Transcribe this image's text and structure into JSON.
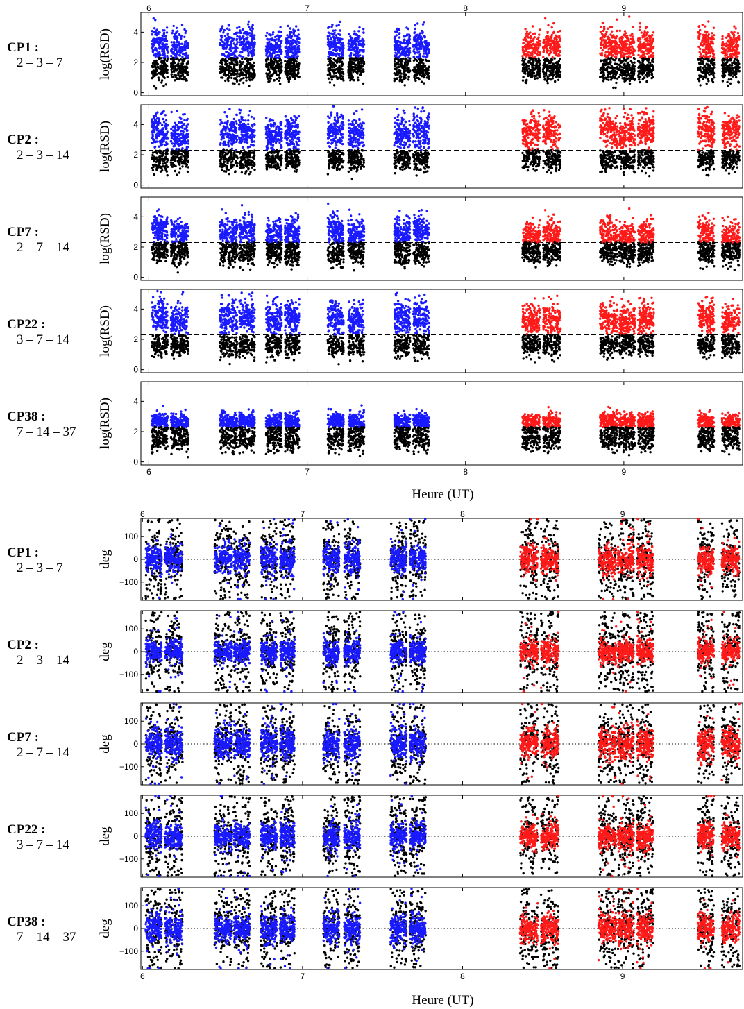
{
  "colors": {
    "black": "#000000",
    "blue": "#1a1aff",
    "red": "#ff1a1a"
  },
  "figure": {
    "xlabel_top": "Heure (UT)",
    "xlabel_bottom": "Heure (UT)"
  },
  "chart_data": [
    {
      "type": "scatter",
      "title": "",
      "xlabel": "Heure (UT)",
      "ylabel": "log(RSD)",
      "xlim": [
        5.95,
        9.75
      ],
      "ylim": [
        -0.2,
        5.3
      ],
      "xticks": [
        6,
        7,
        8,
        9
      ],
      "yticks": [
        0,
        2,
        4
      ],
      "threshold": 2.3,
      "threshold_style": "dashed",
      "panels": [
        {
          "name": "CP1 :",
          "label": "2 – 3 – 7",
          "blue_level": 3.0,
          "red_level": 3.0,
          "spread": 0.55,
          "low_level": 1.5
        },
        {
          "name": "CP2 :",
          "label": "2 – 3 – 14",
          "blue_level": 3.3,
          "red_level": 3.5,
          "spread": 0.6,
          "low_level": 1.7
        },
        {
          "name": "CP7 :",
          "label": "2 – 7 – 14",
          "blue_level": 2.9,
          "red_level": 2.7,
          "spread": 0.5,
          "low_level": 1.6
        },
        {
          "name": "CP22 :",
          "label": "3 – 7 – 14",
          "blue_level": 3.3,
          "red_level": 3.2,
          "spread": 0.6,
          "low_level": 1.6
        },
        {
          "name": "CP38 :",
          "label": "7 – 14 – 37",
          "blue_level": 2.6,
          "red_level": 2.6,
          "spread": 0.3,
          "low_level": 1.5
        }
      ]
    },
    {
      "type": "scatter",
      "title": "",
      "xlabel": "Heure (UT)",
      "ylabel": "deg",
      "xlim": [
        5.99,
        9.75
      ],
      "ylim": [
        -180,
        180
      ],
      "xticks": [
        6,
        7,
        8,
        9
      ],
      "yticks": [
        100,
        0,
        -100
      ],
      "yticklabels": [
        "100",
        "0",
        "−100"
      ],
      "reference_line": 0,
      "reference_style": "dotted",
      "panels": [
        {
          "name": "CP1 :",
          "label": "2 – 3 – 7",
          "spread": 55
        },
        {
          "name": "CP2 :",
          "label": "2 – 3 – 14",
          "spread": 45
        },
        {
          "name": "CP7 :",
          "label": "2 – 7 – 14",
          "spread": 60
        },
        {
          "name": "CP22 :",
          "label": "3 – 7 – 14",
          "spread": 50
        },
        {
          "name": "CP38 :",
          "label": "7 – 14 – 37",
          "spread": 55
        }
      ]
    }
  ],
  "observation_blocks": [
    {
      "start": 6.02,
      "end": 6.12,
      "color": "blue"
    },
    {
      "start": 6.14,
      "end": 6.25,
      "color": "blue"
    },
    {
      "start": 6.45,
      "end": 6.56,
      "color": "blue"
    },
    {
      "start": 6.57,
      "end": 6.67,
      "color": "blue"
    },
    {
      "start": 6.74,
      "end": 6.84,
      "color": "blue"
    },
    {
      "start": 6.86,
      "end": 6.95,
      "color": "blue"
    },
    {
      "start": 7.13,
      "end": 7.23,
      "color": "blue"
    },
    {
      "start": 7.26,
      "end": 7.36,
      "color": "blue"
    },
    {
      "start": 7.55,
      "end": 7.65,
      "color": "blue"
    },
    {
      "start": 7.67,
      "end": 7.77,
      "color": "blue"
    },
    {
      "start": 8.36,
      "end": 8.47,
      "color": "red"
    },
    {
      "start": 8.49,
      "end": 8.6,
      "color": "red"
    },
    {
      "start": 8.85,
      "end": 8.96,
      "color": "red"
    },
    {
      "start": 8.97,
      "end": 9.07,
      "color": "red"
    },
    {
      "start": 9.09,
      "end": 9.19,
      "color": "red"
    },
    {
      "start": 9.47,
      "end": 9.57,
      "color": "red"
    },
    {
      "start": 9.62,
      "end": 9.73,
      "color": "red"
    }
  ]
}
